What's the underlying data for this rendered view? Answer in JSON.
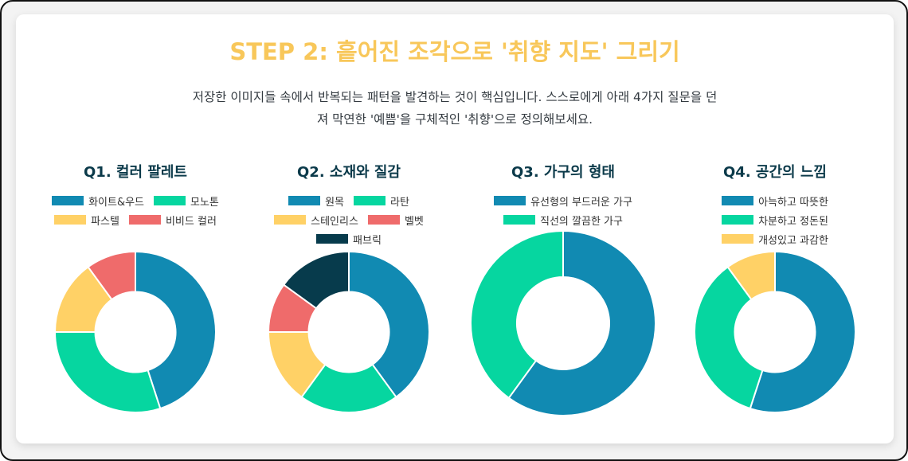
{
  "header": {
    "title": "STEP 2: 흩어진 조각으로 '취향 지도' 그리기",
    "intro_line1": "저장한 이미지들 속에서 반복되는 패턴을 발견하는 것이 핵심입니다. 스스로에게 아래 4가지 질문을 던",
    "intro_line2": "져 막연한 '예쁨'을 구체적인 '취향'으로 정의해보세요."
  },
  "colors": {
    "title": "#f8c75a",
    "blue": "#118ab2",
    "green": "#06d6a0",
    "yellow": "#ffd166",
    "red": "#ef6b6b",
    "navy": "#073b4c"
  },
  "chart_data": [
    {
      "type": "pie",
      "title": "Q1. 컬러 팔레트",
      "donut": true,
      "categories": [
        "화이트&우드",
        "모노톤",
        "파스텔",
        "비비드 컬러"
      ],
      "values": [
        45,
        30,
        15,
        10
      ],
      "colors": [
        "#118ab2",
        "#06d6a0",
        "#ffd166",
        "#ef6b6b"
      ],
      "legend": "top"
    },
    {
      "type": "pie",
      "title": "Q2. 소재와 질감",
      "donut": true,
      "categories": [
        "원목",
        "라탄",
        "스테인리스",
        "벨벳",
        "패브릭"
      ],
      "values": [
        40,
        20,
        15,
        10,
        15
      ],
      "colors": [
        "#118ab2",
        "#06d6a0",
        "#ffd166",
        "#ef6b6b",
        "#073b4c"
      ],
      "legend": "top"
    },
    {
      "type": "pie",
      "title": "Q3. 가구의 형태",
      "donut": true,
      "categories": [
        "유선형의 부드러운 가구",
        "직선의 깔끔한 가구"
      ],
      "values": [
        60,
        40
      ],
      "colors": [
        "#118ab2",
        "#06d6a0"
      ],
      "legend": "top"
    },
    {
      "type": "pie",
      "title": "Q4. 공간의 느낌",
      "donut": true,
      "categories": [
        "아늑하고 따뜻한",
        "차분하고 정돈된",
        "개성있고 과감한"
      ],
      "values": [
        55,
        35,
        10
      ],
      "colors": [
        "#118ab2",
        "#06d6a0",
        "#ffd166"
      ],
      "legend": "top"
    }
  ]
}
